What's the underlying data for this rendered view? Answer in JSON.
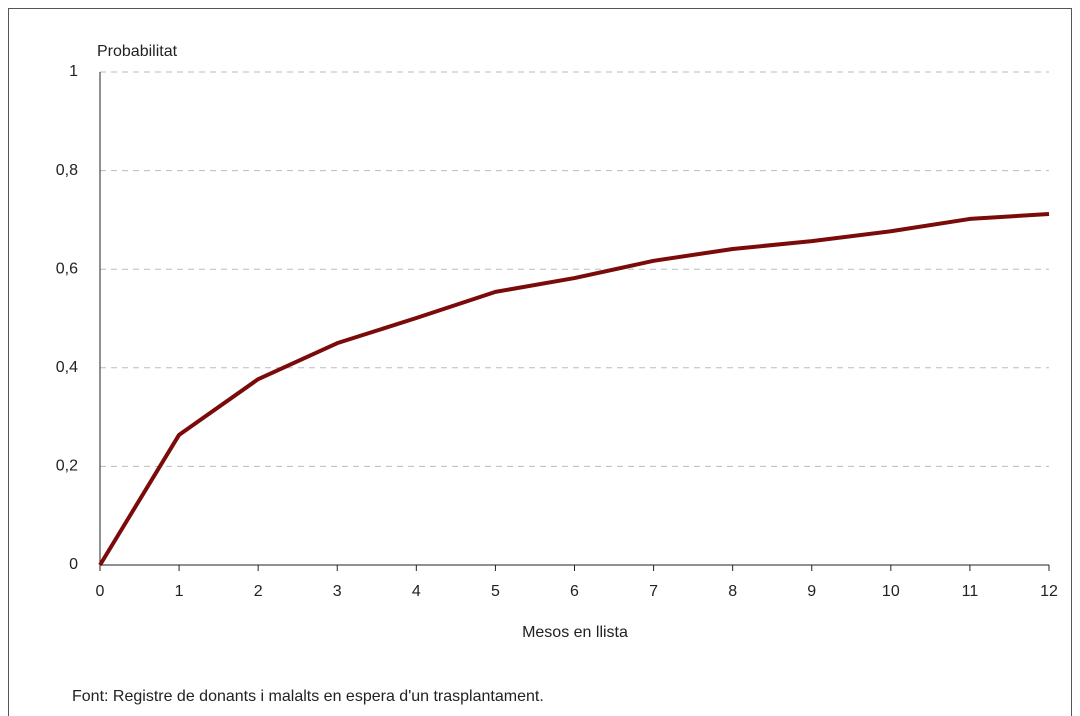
{
  "chart_data": {
    "type": "line",
    "y_label": "Probabilitat",
    "x_label": "Mesos en llista",
    "source": "Font: Registre de donants i malalts en espera d'un trasplantament.",
    "x": [
      0,
      1,
      2,
      3,
      4,
      5,
      6,
      7,
      8,
      9,
      10,
      11,
      12
    ],
    "values": [
      0,
      0.264,
      0.377,
      0.45,
      0.501,
      0.554,
      0.582,
      0.617,
      0.641,
      0.657,
      0.677,
      0.702,
      0.712
    ],
    "color": "#7b0a0a",
    "xlim": [
      0,
      12
    ],
    "xticks": [
      0,
      1,
      2,
      3,
      4,
      5,
      6,
      7,
      8,
      9,
      10,
      11,
      12
    ],
    "ylim": [
      0,
      1
    ],
    "yticks": [
      0,
      {
        "value": 0.2,
        "label": "0,2"
      },
      {
        "value": 0.4,
        "label": "0,4"
      },
      {
        "value": 0.6,
        "label": "0,6"
      },
      {
        "value": 0.8,
        "label": "0,8"
      },
      1
    ],
    "grid": true
  }
}
